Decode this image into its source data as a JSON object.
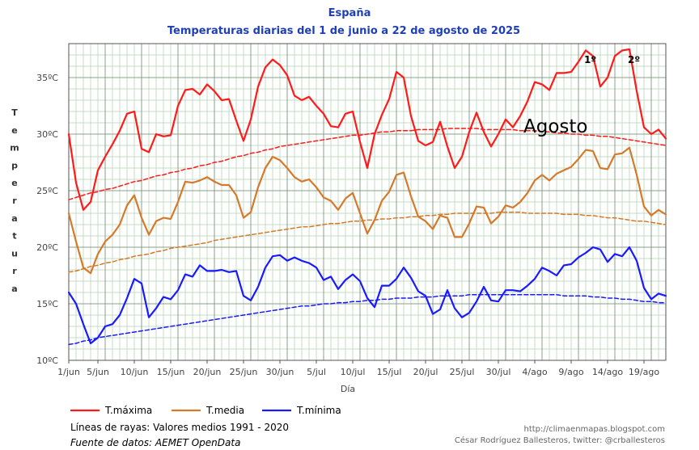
{
  "chart_data": {
    "type": "line",
    "title": "España",
    "subtitle": "Temperaturas diarias del 1 de junio a 22 de agosto de 2025",
    "xlabel": "Día",
    "ylabel": "Temperatura",
    "ylim": [
      10,
      38
    ],
    "yticks": [
      "10ºC",
      "15ºC",
      "20ºC",
      "25ºC",
      "30ºC",
      "35ºC"
    ],
    "xticks": [
      "1/jun",
      "5/jun",
      "10/jun",
      "15/jun",
      "20/jun",
      "25/jun",
      "30/jun",
      "5/jul",
      "10/jul",
      "15/jul",
      "20/jul",
      "25/jul",
      "30/jul",
      "4/ago",
      "9/ago",
      "14/ago",
      "19/ago"
    ],
    "grid": true,
    "series": [
      {
        "name": "T.máxima",
        "color": "#ff1a1a",
        "dashed": false,
        "values": [
          30.0,
          25.7,
          23.3,
          24.0,
          26.8,
          28.0,
          29.1,
          30.3,
          31.8,
          32.0,
          28.7,
          28.4,
          30.0,
          29.8,
          29.9,
          32.5,
          33.9,
          34.0,
          33.5,
          34.4,
          33.8,
          33.0,
          33.1,
          31.2,
          29.4,
          31.3,
          34.2,
          35.9,
          36.6,
          36.1,
          35.2,
          33.4,
          33.0,
          33.3,
          32.5,
          31.8,
          30.7,
          30.6,
          31.8,
          32.0,
          29.3,
          27.0,
          30.0,
          31.7,
          33.1,
          35.5,
          35.0,
          31.6,
          29.4,
          29.0,
          29.3,
          31.1,
          28.9,
          27.0,
          28.0,
          30.2,
          31.9,
          30.2,
          28.9,
          30.0,
          31.3,
          30.6,
          31.6,
          32.9,
          34.6,
          34.4,
          33.9,
          35.4,
          35.4,
          35.5,
          36.4,
          37.4,
          36.9,
          34.2,
          35.0,
          36.9,
          37.4,
          37.5,
          33.8,
          30.6,
          30.0,
          30.4,
          29.6
        ]
      },
      {
        "name": "T.media",
        "color": "#d47a2a",
        "dashed": false,
        "values": [
          23.0,
          20.5,
          18.2,
          17.7,
          19.4,
          20.5,
          21.1,
          22.0,
          23.7,
          24.6,
          22.6,
          21.1,
          22.3,
          22.6,
          22.5,
          24.0,
          25.8,
          25.7,
          25.9,
          26.2,
          25.8,
          25.5,
          25.5,
          24.6,
          22.6,
          23.1,
          25.3,
          27.0,
          28.0,
          27.7,
          27.0,
          26.2,
          25.8,
          26.0,
          25.3,
          24.4,
          24.1,
          23.3,
          24.3,
          24.8,
          23.0,
          21.2,
          22.4,
          24.1,
          24.9,
          26.4,
          26.6,
          24.5,
          22.7,
          22.3,
          21.6,
          22.8,
          22.6,
          20.9,
          20.9,
          22.1,
          23.6,
          23.5,
          22.1,
          22.7,
          23.7,
          23.5,
          24.0,
          24.8,
          25.9,
          26.4,
          25.9,
          26.5,
          26.8,
          27.1,
          27.8,
          28.6,
          28.5,
          27.0,
          26.9,
          28.2,
          28.3,
          28.8,
          26.4,
          23.6,
          22.8,
          23.3,
          22.9
        ]
      },
      {
        "name": "T.mínima",
        "color": "#1a1aff",
        "dashed": false,
        "values": [
          16.0,
          15.0,
          13.2,
          11.5,
          12.0,
          13.0,
          13.2,
          14.0,
          15.5,
          17.2,
          16.8,
          13.8,
          14.6,
          15.6,
          15.4,
          16.2,
          17.6,
          17.4,
          18.4,
          17.9,
          17.9,
          18.0,
          17.8,
          17.9,
          15.7,
          15.3,
          16.5,
          18.2,
          19.2,
          19.3,
          18.8,
          19.1,
          18.8,
          18.6,
          18.2,
          17.1,
          17.4,
          16.3,
          17.1,
          17.6,
          17.0,
          15.5,
          14.7,
          16.6,
          16.6,
          17.2,
          18.2,
          17.3,
          16.1,
          15.7,
          14.1,
          14.5,
          16.2,
          14.6,
          13.8,
          14.2,
          15.2,
          16.5,
          15.3,
          15.2,
          16.2,
          16.2,
          16.1,
          16.6,
          17.2,
          18.2,
          17.9,
          17.5,
          18.4,
          18.5,
          19.1,
          19.5,
          20.0,
          19.8,
          18.7,
          19.4,
          19.2,
          20.0,
          18.8,
          16.4,
          15.4,
          15.9,
          15.7
        ]
      },
      {
        "name": "",
        "color": "#ff1a1a",
        "dashed": true,
        "values": [
          24.2,
          24.4,
          24.6,
          24.8,
          24.9,
          25.1,
          25.2,
          25.4,
          25.6,
          25.8,
          25.9,
          26.1,
          26.3,
          26.4,
          26.6,
          26.7,
          26.9,
          27.0,
          27.2,
          27.3,
          27.5,
          27.6,
          27.8,
          28.0,
          28.1,
          28.3,
          28.4,
          28.6,
          28.7,
          28.9,
          29.0,
          29.1,
          29.2,
          29.3,
          29.4,
          29.5,
          29.6,
          29.7,
          29.8,
          29.9,
          29.9,
          30.0,
          30.1,
          30.2,
          30.2,
          30.3,
          30.3,
          30.3,
          30.4,
          30.4,
          30.4,
          30.4,
          30.5,
          30.5,
          30.5,
          30.5,
          30.5,
          30.4,
          30.4,
          30.4,
          30.4,
          30.4,
          30.3,
          30.3,
          30.3,
          30.2,
          30.2,
          30.1,
          30.1,
          30.0,
          30.0,
          29.9,
          29.9,
          29.8,
          29.8,
          29.7,
          29.6,
          29.5,
          29.4,
          29.3,
          29.2,
          29.1,
          29.0
        ]
      },
      {
        "name": "",
        "color": "#d47a2a",
        "dashed": true,
        "values": [
          17.8,
          17.9,
          18.1,
          18.3,
          18.4,
          18.6,
          18.7,
          18.9,
          19.0,
          19.2,
          19.3,
          19.4,
          19.6,
          19.7,
          19.9,
          20.0,
          20.1,
          20.2,
          20.3,
          20.4,
          20.6,
          20.7,
          20.8,
          20.9,
          21.0,
          21.1,
          21.2,
          21.3,
          21.4,
          21.5,
          21.6,
          21.7,
          21.8,
          21.8,
          21.9,
          22.0,
          22.1,
          22.1,
          22.2,
          22.3,
          22.3,
          22.4,
          22.4,
          22.5,
          22.5,
          22.6,
          22.6,
          22.7,
          22.7,
          22.8,
          22.8,
          22.9,
          22.9,
          23.0,
          23.0,
          23.0,
          23.0,
          23.0,
          23.0,
          23.1,
          23.1,
          23.1,
          23.1,
          23.0,
          23.0,
          23.0,
          23.0,
          23.0,
          22.9,
          22.9,
          22.9,
          22.8,
          22.8,
          22.7,
          22.6,
          22.6,
          22.5,
          22.4,
          22.3,
          22.3,
          22.2,
          22.1,
          22.0
        ]
      },
      {
        "name": "",
        "color": "#1a1aff",
        "dashed": true,
        "values": [
          11.4,
          11.5,
          11.7,
          11.8,
          12.0,
          12.1,
          12.2,
          12.3,
          12.4,
          12.5,
          12.6,
          12.7,
          12.8,
          12.9,
          13.0,
          13.1,
          13.2,
          13.3,
          13.4,
          13.5,
          13.6,
          13.7,
          13.8,
          13.9,
          14.0,
          14.1,
          14.2,
          14.3,
          14.4,
          14.5,
          14.6,
          14.7,
          14.8,
          14.8,
          14.9,
          15.0,
          15.0,
          15.1,
          15.1,
          15.2,
          15.2,
          15.3,
          15.3,
          15.4,
          15.4,
          15.5,
          15.5,
          15.5,
          15.6,
          15.6,
          15.6,
          15.7,
          15.7,
          15.7,
          15.7,
          15.8,
          15.8,
          15.8,
          15.8,
          15.8,
          15.8,
          15.8,
          15.8,
          15.8,
          15.8,
          15.8,
          15.8,
          15.8,
          15.7,
          15.7,
          15.7,
          15.7,
          15.6,
          15.6,
          15.5,
          15.5,
          15.4,
          15.4,
          15.3,
          15.2,
          15.2,
          15.1,
          15.1
        ]
      }
    ],
    "annotations": [
      {
        "text": "Agosto",
        "day": 62
      },
      {
        "text": "1º",
        "day": 71
      },
      {
        "text": "2º",
        "day": 77
      }
    ],
    "legend": {
      "placement": "bottom-left",
      "items": [
        {
          "label": "T.máxima",
          "color": "#ff1a1a"
        },
        {
          "label": "T.media",
          "color": "#d47a2a"
        },
        {
          "label": "T.mínima",
          "color": "#1a1aff"
        }
      ]
    },
    "note": "Líneas de rayas: Valores medios 1991 - 2020",
    "source": "Fuente de datos: AEMET OpenData",
    "credit_url": "http://climaenmapas.blogspot.com",
    "credit_author": "César Rodríguez Ballesteros, twitter: @crballesteros"
  }
}
